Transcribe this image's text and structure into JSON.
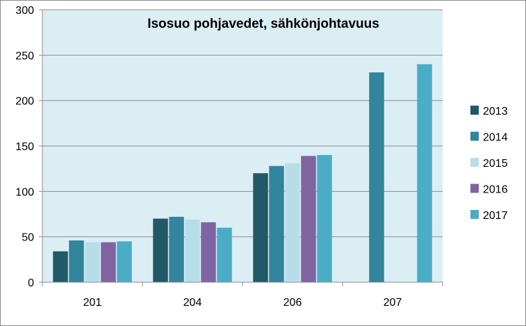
{
  "chart_data": {
    "type": "bar",
    "title": "Isosuo pohjavedet, sähkönjohtavuus",
    "xlabel": "",
    "ylabel": "",
    "categories": [
      "201",
      "204",
      "206",
      "207"
    ],
    "ylim": [
      0,
      300
    ],
    "yticks": [
      0,
      50,
      100,
      150,
      200,
      250,
      300
    ],
    "grid": true,
    "legend_position": "right",
    "plot_background": "#dbeef4",
    "series": [
      {
        "name": "2013",
        "color": "#215968",
        "values": [
          34,
          70,
          120,
          null
        ]
      },
      {
        "name": "2014",
        "color": "#31859c",
        "values": [
          46,
          72,
          128,
          231
        ]
      },
      {
        "name": "2015",
        "color": "#b7dee8",
        "values": [
          44,
          69,
          131,
          null
        ]
      },
      {
        "name": "2016",
        "color": "#8064a2",
        "values": [
          44,
          66,
          139,
          null
        ]
      },
      {
        "name": "2017",
        "color": "#4bacc6",
        "values": [
          45,
          60,
          140,
          240
        ]
      }
    ]
  }
}
